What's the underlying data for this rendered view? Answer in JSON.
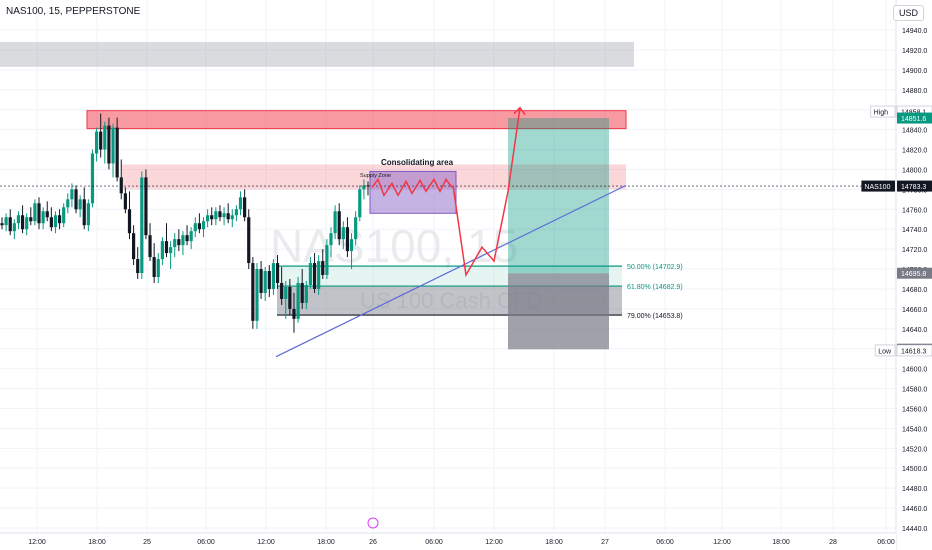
{
  "header": {
    "symbol_line": "NAS100, 15, PEPPERSTONE"
  },
  "currency": "USD",
  "watermark": {
    "symbol": "NAS100, 15",
    "name": "US 100 Cash CFD"
  },
  "chart_data": {
    "type": "candlestick",
    "symbol": "NAS100",
    "ylim": [
      14440,
      14960
    ],
    "y_ticks": [
      14940.0,
      14920.0,
      14900.0,
      14880.0,
      14858.1,
      14840.0,
      14820.0,
      14800.0,
      14780.0,
      14760.0,
      14740.0,
      14720.0,
      14700.0,
      14680.0,
      14660.0,
      14640.0,
      14620.0,
      14600.0,
      14580.0,
      14560.0,
      14540.0,
      14520.0,
      14500.0,
      14480.0,
      14460.0,
      14440.0
    ],
    "x_ticks": [
      "12:00",
      "18:00",
      "25",
      "06:00",
      "12:00",
      "18:00",
      "26",
      "06:00",
      "12:00",
      "18:00",
      "27",
      "06:00",
      "12:00",
      "18:00",
      "28",
      "06:00"
    ],
    "price_labels": [
      {
        "label": "High",
        "value": "14858.1",
        "style": "plain"
      },
      {
        "label": "",
        "value": "14851.6",
        "style": "green"
      },
      {
        "label": "NAS100",
        "value": "14783.3",
        "style": "dark"
      },
      {
        "label": "",
        "value": "14695.8",
        "style": "gray"
      },
      {
        "label": "",
        "value": "14619.4",
        "style": "dark"
      },
      {
        "label": "Low",
        "value": "14618.3",
        "style": "plain"
      }
    ],
    "fib_levels": [
      {
        "label": "50.00% (14702.9)",
        "value": 14702.9,
        "color": "#089981"
      },
      {
        "label": "61.80% (14682.9)",
        "value": 14682.9,
        "color": "#089981"
      },
      {
        "label": "79.00% (14653.8)",
        "value": 14653.8,
        "color": "#131722"
      }
    ],
    "zones": [
      {
        "top": 14928,
        "bottom": 14903,
        "color": "#9598a1",
        "opacity": 0.35
      },
      {
        "top": 14859,
        "bottom": 14841,
        "color": "#f23645",
        "opacity": 0.5
      },
      {
        "top": 14805,
        "bottom": 14780,
        "color": "#f23645",
        "opacity": 0.2
      },
      {
        "top": 14798,
        "bottom": 14756,
        "color": "#7e57c2",
        "opacity": 0.45
      }
    ],
    "annotations": [
      "Consolidating area",
      "Supply Zone"
    ],
    "candles": [
      [
        14746,
        14752,
        14740,
        14744
      ],
      [
        14744,
        14756,
        14738,
        14752
      ],
      [
        14752,
        14760,
        14734,
        14738
      ],
      [
        14738,
        14750,
        14730,
        14746
      ],
      [
        14746,
        14758,
        14740,
        14754
      ],
      [
        14754,
        14764,
        14736,
        14740
      ],
      [
        14740,
        14756,
        14734,
        14752
      ],
      [
        14752,
        14762,
        14744,
        14748
      ],
      [
        14748,
        14770,
        14744,
        14766
      ],
      [
        14766,
        14772,
        14740,
        14746
      ],
      [
        14746,
        14762,
        14740,
        14758
      ],
      [
        14758,
        14768,
        14748,
        14752
      ],
      [
        14752,
        14762,
        14738,
        14742
      ],
      [
        14742,
        14758,
        14736,
        14754
      ],
      [
        14754,
        14760,
        14740,
        14746
      ],
      [
        14746,
        14766,
        14742,
        14762
      ],
      [
        14762,
        14776,
        14756,
        14770
      ],
      [
        14770,
        14786,
        14762,
        14780
      ],
      [
        14780,
        14784,
        14756,
        14760
      ],
      [
        14760,
        14774,
        14752,
        14770
      ],
      [
        14770,
        14782,
        14740,
        14744
      ],
      [
        14744,
        14770,
        14738,
        14766
      ],
      [
        14766,
        14820,
        14762,
        14816
      ],
      [
        14816,
        14842,
        14808,
        14838
      ],
      [
        14838,
        14856,
        14812,
        14820
      ],
      [
        14820,
        14848,
        14806,
        14844
      ],
      [
        14844,
        14852,
        14800,
        14806
      ],
      [
        14806,
        14846,
        14792,
        14842
      ],
      [
        14842,
        14852,
        14788,
        14792
      ],
      [
        14792,
        14810,
        14770,
        14776
      ],
      [
        14776,
        14782,
        14756,
        14760
      ],
      [
        14760,
        14778,
        14730,
        14736
      ],
      [
        14736,
        14744,
        14704,
        14710
      ],
      [
        14710,
        14722,
        14690,
        14696
      ],
      [
        14696,
        14798,
        14690,
        14792
      ],
      [
        14792,
        14800,
        14730,
        14734
      ],
      [
        14734,
        14746,
        14708,
        14712
      ],
      [
        14712,
        14726,
        14686,
        14692
      ],
      [
        14692,
        14716,
        14686,
        14710
      ],
      [
        14710,
        14732,
        14704,
        14728
      ],
      [
        14728,
        14746,
        14712,
        14716
      ],
      [
        14716,
        14728,
        14700,
        14722
      ],
      [
        14722,
        14736,
        14712,
        14730
      ],
      [
        14730,
        14740,
        14718,
        14724
      ],
      [
        14724,
        14738,
        14714,
        14734
      ],
      [
        14734,
        14744,
        14724,
        14728
      ],
      [
        14728,
        14742,
        14720,
        14738
      ],
      [
        14738,
        14752,
        14732,
        14746
      ],
      [
        14746,
        14756,
        14736,
        14740
      ],
      [
        14740,
        14752,
        14732,
        14748
      ],
      [
        14748,
        14760,
        14742,
        14754
      ],
      [
        14754,
        14762,
        14744,
        14750
      ],
      [
        14750,
        14762,
        14744,
        14758
      ],
      [
        14758,
        14764,
        14748,
        14752
      ],
      [
        14752,
        14762,
        14744,
        14756
      ],
      [
        14756,
        14766,
        14746,
        14750
      ],
      [
        14750,
        14760,
        14742,
        14754
      ],
      [
        14754,
        14764,
        14748,
        14760
      ],
      [
        14760,
        14778,
        14754,
        14772
      ],
      [
        14772,
        14780,
        14748,
        14752
      ],
      [
        14752,
        14760,
        14700,
        14706
      ],
      [
        14706,
        14712,
        14640,
        14648
      ],
      [
        14648,
        14706,
        14640,
        14700
      ],
      [
        14700,
        14708,
        14670,
        14676
      ],
      [
        14676,
        14702,
        14668,
        14698
      ],
      [
        14698,
        14704,
        14672,
        14680
      ],
      [
        14680,
        14710,
        14674,
        14706
      ],
      [
        14706,
        14714,
        14680,
        14686
      ],
      [
        14686,
        14702,
        14664,
        14670
      ],
      [
        14670,
        14688,
        14650,
        14682
      ],
      [
        14682,
        14690,
        14654,
        14660
      ],
      [
        14660,
        14676,
        14636,
        14650
      ],
      [
        14650,
        14692,
        14646,
        14686
      ],
      [
        14686,
        14700,
        14660,
        14666
      ],
      [
        14666,
        14688,
        14660,
        14684
      ],
      [
        14684,
        14712,
        14680,
        14706
      ],
      [
        14706,
        14716,
        14676,
        14680
      ],
      [
        14680,
        14714,
        14674,
        14708
      ],
      [
        14708,
        14720,
        14690,
        14694
      ],
      [
        14694,
        14730,
        14690,
        14724
      ],
      [
        14724,
        14742,
        14712,
        14736
      ],
      [
        14736,
        14764,
        14730,
        14758
      ],
      [
        14758,
        14766,
        14724,
        14730
      ],
      [
        14730,
        14748,
        14720,
        14742
      ],
      [
        14742,
        14752,
        14712,
        14718
      ],
      [
        14718,
        14736,
        14700,
        14730
      ],
      [
        14730,
        14758,
        14724,
        14752
      ],
      [
        14752,
        14784,
        14748,
        14780
      ],
      [
        14780,
        14790,
        14770,
        14784
      ],
      [
        14784,
        14788,
        14774,
        14783
      ]
    ],
    "projection_path": [
      [
        0,
        14782
      ],
      [
        6,
        14794
      ],
      [
        12,
        14704
      ],
      [
        15,
        14722
      ],
      [
        18,
        14712
      ],
      [
        22,
        14790
      ],
      [
        26,
        14860
      ]
    ]
  }
}
